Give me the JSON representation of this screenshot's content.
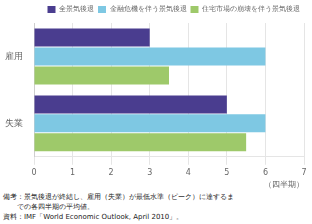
{
  "chart_data": {
    "type": "bar",
    "orientation": "horizontal",
    "categories": [
      "雇用",
      "失業"
    ],
    "series": [
      {
        "name": "全景気後退",
        "color": "#4a3d8f",
        "values": [
          3.0,
          5.0
        ]
      },
      {
        "name": "金融危機を伴う景気後退",
        "color": "#7ec8e3",
        "values": [
          6.0,
          6.0
        ]
      },
      {
        "name": "住宅市場の崩壊を伴う景気後退",
        "color": "#9ec96a",
        "values": [
          3.5,
          5.5
        ]
      }
    ],
    "xlim": [
      0,
      7
    ],
    "xticks": [
      0,
      1,
      2,
      3,
      4,
      5,
      6,
      7
    ],
    "xlabel": "（四半期）",
    "grid": true,
    "legend": "upper right",
    "annotations": [
      "備考：景気後退が終結し、雇用（失業）が最低水準（ピーク）に達するま",
      "　　での各四半期の平均値。",
      "資料：IMF「World Economic Outlook, April 2010」。"
    ]
  }
}
